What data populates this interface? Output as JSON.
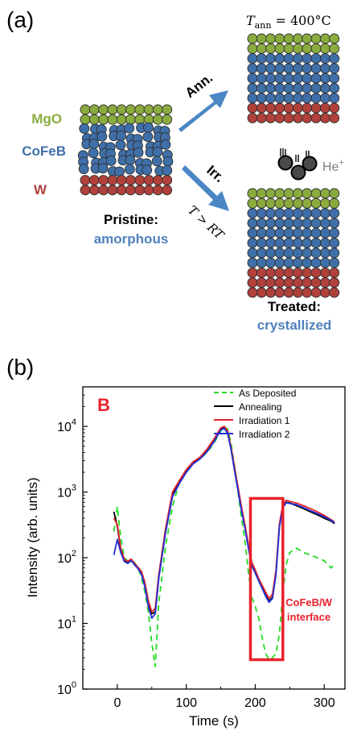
{
  "panel_a": {
    "label": "(a)",
    "layers": {
      "mgo": "MgO",
      "cofeb": "CoFeB",
      "w": "W"
    },
    "pristine_title": "Pristine:",
    "pristine_state": "amorphous",
    "ann_label": "Ann.",
    "irr_label": "Irr.",
    "irr_condition": "T > RT",
    "ann_temp": "T",
    "ann_temp_sub": "ann",
    "ann_temp_val": " = 400°C",
    "ion": "He",
    "ion_sup": "+",
    "treated_title": "Treated:",
    "treated_state": "crystallized"
  },
  "panel_b": {
    "label": "(b)",
    "corner_label": "B",
    "legend": {
      "as_deposited": "As Deposited",
      "annealing": "Annealing",
      "irradiation_1": "Irradiation 1",
      "irradiation_2": "Irradiation 2"
    },
    "annotation_line1": "CoFeB/W",
    "annotation_line2": "interface",
    "y_base": "10",
    "y_exps": [
      "0",
      "1",
      "2",
      "3",
      "4"
    ],
    "x_ticks": [
      "0",
      "100",
      "200",
      "300"
    ]
  },
  "colors": {
    "mgo": "#8aab3e",
    "cofeb": "#3f6fa8",
    "w": "#b0403b",
    "arrow": "#4b87c5",
    "accent_text": "#4f81bd",
    "red": "#e8222b",
    "as_deposited": "#22dd22",
    "annealing": "#000000",
    "irradiation_1": "#e3242b",
    "irradiation_2": "#1f2fd6"
  },
  "chart_data": {
    "type": "line",
    "title": "",
    "xlabel": "Time (s)",
    "ylabel": "Intensity (arb. units)",
    "xlim": [
      -50,
      330
    ],
    "ylim": [
      1,
      40000
    ],
    "yscale": "log",
    "legend_position": "top-right",
    "series": [
      {
        "name": "As Deposited",
        "style": "dashed",
        "x": [
          -5,
          0,
          5,
          10,
          15,
          20,
          25,
          30,
          35,
          40,
          45,
          50,
          55,
          60,
          70,
          80,
          90,
          100,
          110,
          120,
          130,
          140,
          150,
          155,
          160,
          165,
          170,
          175,
          180,
          185,
          190,
          195,
          200,
          205,
          210,
          215,
          220,
          225,
          230,
          235,
          240,
          245,
          250,
          260,
          270,
          280,
          290,
          300,
          310,
          315
        ],
        "y": [
          250,
          600,
          200,
          100,
          90,
          90,
          85,
          70,
          50,
          30,
          15,
          5,
          2.2,
          20,
          150,
          600,
          1400,
          2000,
          2700,
          3200,
          4000,
          5500,
          8500,
          10000,
          9000,
          5500,
          2500,
          1000,
          400,
          180,
          60,
          25,
          18,
          12,
          6,
          3.5,
          2.8,
          3,
          3.5,
          7,
          30,
          80,
          120,
          140,
          120,
          110,
          100,
          90,
          70,
          80
        ]
      },
      {
        "name": "Annealing",
        "style": "solid",
        "x": [
          -5,
          0,
          5,
          10,
          15,
          20,
          25,
          30,
          35,
          40,
          45,
          50,
          55,
          60,
          70,
          80,
          90,
          100,
          110,
          120,
          130,
          140,
          150,
          155,
          160,
          165,
          170,
          175,
          180,
          185,
          190,
          195,
          200,
          205,
          210,
          215,
          220,
          225,
          230,
          235,
          240,
          245,
          250,
          260,
          270,
          280,
          290,
          300,
          310,
          315
        ],
        "y": [
          500,
          300,
          130,
          90,
          85,
          95,
          80,
          70,
          60,
          40,
          20,
          14,
          15,
          50,
          250,
          900,
          1400,
          2100,
          2800,
          3300,
          4300,
          6000,
          9000,
          9500,
          8000,
          4500,
          2200,
          1100,
          550,
          300,
          150,
          80,
          60,
          45,
          35,
          27,
          22,
          25,
          60,
          300,
          600,
          700,
          680,
          620,
          560,
          500,
          450,
          400,
          360,
          330
        ]
      },
      {
        "name": "Irradiation 1",
        "style": "solid",
        "x": [
          -5,
          0,
          5,
          10,
          15,
          20,
          25,
          30,
          35,
          40,
          45,
          50,
          55,
          60,
          70,
          80,
          90,
          100,
          110,
          120,
          130,
          140,
          150,
          155,
          160,
          165,
          170,
          175,
          180,
          185,
          190,
          195,
          200,
          205,
          210,
          215,
          220,
          225,
          230,
          235,
          240,
          245,
          250,
          260,
          270,
          280,
          290,
          300,
          310,
          315
        ],
        "y": [
          400,
          320,
          140,
          95,
          88,
          95,
          82,
          72,
          62,
          42,
          22,
          15,
          17,
          55,
          280,
          1000,
          1500,
          2200,
          2900,
          3400,
          4500,
          6400,
          9500,
          10000,
          8500,
          4800,
          2400,
          1200,
          600,
          320,
          160,
          85,
          65,
          48,
          38,
          30,
          24,
          28,
          65,
          330,
          650,
          750,
          720,
          680,
          620,
          560,
          500,
          440,
          380,
          350
        ]
      },
      {
        "name": "Irradiation 2",
        "style": "solid",
        "x": [
          -5,
          0,
          5,
          10,
          15,
          20,
          25,
          30,
          35,
          40,
          45,
          50,
          55,
          60,
          70,
          80,
          90,
          100,
          110,
          120,
          130,
          140,
          150,
          155,
          160,
          165,
          170,
          175,
          180,
          185,
          190,
          195,
          200,
          205,
          210,
          215,
          220,
          225,
          230,
          235,
          240,
          245,
          250,
          260,
          270,
          280,
          290,
          300,
          310,
          315
        ],
        "y": [
          110,
          190,
          120,
          88,
          82,
          90,
          78,
          68,
          56,
          36,
          18,
          12,
          14,
          48,
          240,
          850,
          1350,
          2000,
          2700,
          3200,
          4100,
          5800,
          8800,
          9300,
          7800,
          4400,
          2100,
          1050,
          520,
          280,
          140,
          75,
          58,
          44,
          34,
          26,
          21,
          24,
          55,
          290,
          580,
          690,
          670,
          640,
          580,
          520,
          470,
          420,
          370,
          340
        ]
      }
    ],
    "highlight_box": {
      "x": [
        193,
        240
      ],
      "y": [
        2.8,
        800
      ]
    }
  }
}
